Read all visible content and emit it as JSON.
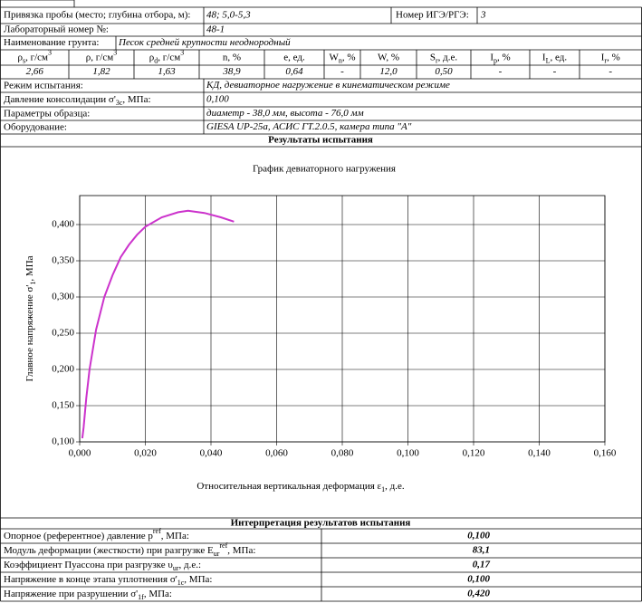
{
  "header": {
    "sample_location": {
      "label": "Привязка пробы (место; глубина отбора, м):",
      "value": "48; 5,0-5,3"
    },
    "ige": {
      "label": "Номер ИГЭ/РГЭ:",
      "value": "3"
    },
    "lab_number": {
      "label": "Лабораторный номер №:",
      "value": "48-1"
    },
    "soil": {
      "label": "Наименование грунта:",
      "value": "Песок средней крупности неоднородный"
    }
  },
  "properties": {
    "headers": [
      [
        "ρ",
        {
          "sub": "s"
        },
        ", г/см",
        {
          "sup": "3"
        }
      ],
      [
        "ρ, г/см",
        {
          "sup": "3"
        }
      ],
      [
        "ρ",
        {
          "sub": "d"
        },
        ", г/см",
        {
          "sup": "3"
        }
      ],
      [
        "n, %"
      ],
      [
        "e, ед."
      ],
      [
        "W",
        {
          "sub": "n"
        },
        ", %"
      ],
      [
        "W, %"
      ],
      [
        "S",
        {
          "sub": "r"
        },
        ", д.е."
      ],
      [
        "I",
        {
          "sub": "p"
        },
        ", %"
      ],
      [
        "I",
        {
          "sub": "L"
        },
        ", ед."
      ],
      [
        "I",
        {
          "sub": "r"
        },
        ", %"
      ]
    ],
    "values": [
      "2,66",
      "1,82",
      "1,63",
      "38,9",
      "0,64",
      "-",
      "12,0",
      "0,50",
      "-",
      "-",
      "-"
    ]
  },
  "test": [
    {
      "label": [
        "Режим испытания:"
      ],
      "value": "КД, девиаторное нагружение в кинематическом режиме"
    },
    {
      "label": [
        "Давление консолидации σ'",
        {
          "sub": "3c"
        },
        ", МПа:"
      ],
      "value": "0,100"
    },
    {
      "label": [
        "Параметры образца:"
      ],
      "value": "диаметр - 38,0 мм, высота - 76,0 мм"
    },
    {
      "label": [
        "Оборудование:"
      ],
      "value": "GIESA UP-25a, АСИС ГТ.2.0.5, камера типа \"А\""
    }
  ],
  "results_title": "Результаты испытания",
  "chart_data": {
    "type": "line",
    "title": "График девиаторного нагружения",
    "x_label": [
      "Относительная вертикальная деформация ε",
      {
        "sub": "1"
      },
      ", д.е."
    ],
    "y_label": [
      "Главное напряжение σ'",
      {
        "sub": "1"
      },
      ", МПа"
    ],
    "x": [
      0.0008,
      0.0012,
      0.002,
      0.003,
      0.005,
      0.0075,
      0.01,
      0.0125,
      0.015,
      0.0175,
      0.02,
      0.025,
      0.03,
      0.033,
      0.038,
      0.043,
      0.047
    ],
    "series": [
      {
        "name": "σ'1",
        "color": "#cc33cc",
        "values": [
          0.105,
          0.12,
          0.16,
          0.2,
          0.255,
          0.3,
          0.33,
          0.355,
          0.372,
          0.386,
          0.397,
          0.41,
          0.417,
          0.419,
          0.416,
          0.41,
          0.404
        ]
      }
    ],
    "xlim": [
      0,
      0.16
    ],
    "ylim": [
      0.1,
      0.44
    ],
    "xticks": [
      {
        "value": 0,
        "label": "0,000"
      },
      {
        "value": 0.02,
        "label": "0,020"
      },
      {
        "value": 0.04,
        "label": "0,040"
      },
      {
        "value": 0.06,
        "label": "0,060"
      },
      {
        "value": 0.08,
        "label": "0,080"
      },
      {
        "value": 0.1,
        "label": "0,100"
      },
      {
        "value": 0.12,
        "label": "0,120"
      },
      {
        "value": 0.14,
        "label": "0,140"
      },
      {
        "value": 0.16,
        "label": "0,160"
      }
    ],
    "yticks": [
      {
        "value": 0.1,
        "label": "0,100"
      },
      {
        "value": 0.15,
        "label": "0,150"
      },
      {
        "value": 0.2,
        "label": "0,200"
      },
      {
        "value": 0.25,
        "label": "0,250"
      },
      {
        "value": 0.3,
        "label": "0,300"
      },
      {
        "value": 0.35,
        "label": "0,350"
      },
      {
        "value": 0.4,
        "label": "0,400"
      }
    ],
    "grid": true
  },
  "interpretation": {
    "title": "Интерпретация результатов испытания",
    "rows": [
      {
        "label": [
          "Опорное (референтное) давление p",
          {
            "sup": "ref"
          },
          ", МПа:"
        ],
        "value": "0,100"
      },
      {
        "label": [
          "Модуль деформации (жесткости) при разгрузке E",
          {
            "sub": "ur"
          },
          {
            "sup": "ref"
          },
          ", МПа:"
        ],
        "value": "83,1"
      },
      {
        "label": [
          "Коэффициент Пуассона при разгрузке υ",
          {
            "sub": "ur"
          },
          ", д.е.:"
        ],
        "value": "0,17"
      },
      {
        "label": [
          "Напряжение в конце этапа уплотнения σ'",
          {
            "sub": "1c"
          },
          ", МПа:"
        ],
        "value": "0,100"
      },
      {
        "label": [
          "Напряжение при разрушении σ'",
          {
            "sub": "1f"
          },
          ", МПа:"
        ],
        "value": "0,420"
      }
    ]
  }
}
